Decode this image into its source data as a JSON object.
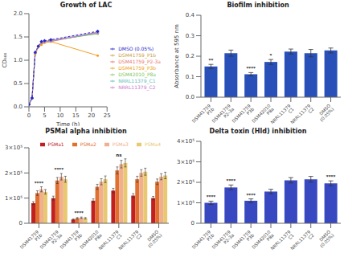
{
  "chart_data": [
    {
      "type": "line",
      "title": "Growth of LAC",
      "x_label": "Time (h)",
      "y_label": "CD₆₀₀",
      "x": [
        0,
        1,
        2,
        3,
        4,
        5,
        7,
        22
      ],
      "series": [
        {
          "name": "DSM41759_P1b",
          "color": "#c8a040",
          "values": [
            0.05,
            0.18,
            1.15,
            1.3,
            1.38,
            1.4,
            1.42,
            1.57
          ],
          "marker": "circle",
          "line_style": "solid"
        },
        {
          "name": "DSM41759_P2-3a",
          "color": "#e87870",
          "values": [
            0.05,
            0.18,
            1.15,
            1.28,
            1.35,
            1.38,
            1.4,
            1.6
          ],
          "marker": "circle",
          "line_style": "solid"
        },
        {
          "name": "DSM41759_P3b",
          "color": "#f0a020",
          "values": [
            0.05,
            0.18,
            1.12,
            1.28,
            1.33,
            1.38,
            1.4,
            1.1
          ],
          "marker": "circle",
          "line_style": "solid"
        },
        {
          "name": "DSM42010_P8a",
          "color": "#80c860",
          "values": [
            0.05,
            0.18,
            1.15,
            1.3,
            1.38,
            1.4,
            1.42,
            1.58
          ],
          "marker": "circle",
          "line_style": "solid"
        },
        {
          "name": "NRRL11379_C1",
          "color": "#60c0b8",
          "values": [
            0.05,
            0.18,
            1.15,
            1.3,
            1.38,
            1.4,
            1.42,
            1.58
          ],
          "marker": "circle",
          "line_style": "solid"
        },
        {
          "name": "NRRL11379_C2",
          "color": "#c878d0",
          "values": [
            0.05,
            0.18,
            1.15,
            1.3,
            1.38,
            1.4,
            1.42,
            1.6
          ],
          "marker": "circle",
          "line_style": "solid"
        },
        {
          "name": "DMSO (0.05%)",
          "color": "#2828cc",
          "values": [
            0.05,
            0.19,
            1.17,
            1.3,
            1.4,
            1.42,
            1.44,
            1.62
          ],
          "marker": "diamond",
          "line_style": "dashed"
        }
      ],
      "xlim": [
        0,
        25
      ],
      "xticks": [
        0,
        5,
        10,
        15,
        20,
        25
      ],
      "ylim": [
        0,
        2
      ],
      "yticks": [
        {
          "value": 0,
          "label": "0.0"
        },
        0.5,
        {
          "value": 1,
          "label": "1.0"
        },
        1.5,
        {
          "value": 2,
          "label": "2.0"
        }
      ],
      "grid": false,
      "legend": "right"
    },
    {
      "type": "bar",
      "title": "Biofilm inhibition",
      "y_label": "Absorbance at 595 nm",
      "categories": [
        "DSM41759\nP1b",
        "DSM41759\nP2-3a",
        "DSM41759\nP3b",
        "DSM42010\nP8a",
        "NRRL11379\nC1",
        "NRRL11379\nC2",
        "DMSO\n(0.05%)"
      ],
      "values": [
        0.15,
        0.215,
        0.112,
        0.172,
        0.223,
        0.215,
        0.228
      ],
      "errors": [
        0.01,
        0.015,
        0.008,
        0.012,
        0.012,
        0.018,
        0.012
      ],
      "color": "#2850b8",
      "annotations": [
        "**",
        null,
        "****",
        "*",
        null,
        null,
        null
      ],
      "ylim": [
        0,
        0.4
      ],
      "yticks": [
        {
          "value": 0,
          "label": "0.0"
        },
        0.1,
        0.2,
        0.3,
        0.4
      ],
      "grid": false
    },
    {
      "type": "bar",
      "title": "PSMal alpha inhibition",
      "categories": [
        "DSM41759\nP1b",
        "DSM41759\nP2-3a",
        "DSM41759\nP3b",
        "DSM42010\nP8a",
        "NRRL11379\nC1",
        "NRRL11379\nC2",
        "DMSO\n(0.05%)"
      ],
      "series": [
        {
          "name": "PSMa1",
          "color": "#c02020",
          "values": [
            80000,
            100000,
            15000,
            90000,
            130000,
            110000,
            100000
          ],
          "errors": [
            6000,
            8000,
            2000,
            7000,
            9000,
            8000,
            7000
          ]
        },
        {
          "name": "PSMa2",
          "color": "#e07030",
          "values": [
            120000,
            170000,
            20000,
            145000,
            210000,
            175000,
            165000
          ],
          "errors": [
            9000,
            12000,
            3000,
            10000,
            14000,
            12000,
            11000
          ]
        },
        {
          "name": "PSMa3",
          "color": "#f0b090",
          "values": [
            135000,
            185000,
            22000,
            165000,
            235000,
            200000,
            185000
          ],
          "errors": [
            10000,
            13000,
            3000,
            12000,
            15000,
            13000,
            12000
          ]
        },
        {
          "name": "PSMa4",
          "color": "#e8c870",
          "values": [
            125000,
            175000,
            20000,
            175000,
            240000,
            205000,
            190000
          ],
          "errors": [
            9000,
            12000,
            3000,
            13000,
            16000,
            14000,
            13000
          ]
        }
      ],
      "annotations": [
        "****",
        "****",
        "****",
        null,
        "ns",
        null,
        null
      ],
      "ylim": [
        0,
        300000
      ],
      "yticks": [
        0,
        {
          "value": 100000,
          "label": "1×10⁵"
        },
        {
          "value": 200000,
          "label": "2×10⁵"
        },
        {
          "value": 300000,
          "label": "3×10⁵"
        }
      ],
      "grid": false,
      "legend": "top"
    },
    {
      "type": "bar",
      "title": "Delta toxin (Hld) inhibition",
      "categories": [
        "DSM41759\nP1b",
        "DSM41759\nP2-3a",
        "DSM41759\nP3b",
        "DSM42010\nP8a",
        "NRRL11379\nC1",
        "NRRL11379\nC2",
        "DMSO\n(0.05%)"
      ],
      "values": [
        100000,
        175000,
        110000,
        155000,
        210000,
        215000,
        195000
      ],
      "errors": [
        8000,
        12000,
        9000,
        11000,
        13000,
        14000,
        12000
      ],
      "color": "#3848c0",
      "annotations": [
        "****",
        "****",
        "****",
        null,
        null,
        null,
        "****"
      ],
      "ylim": [
        0,
        400000
      ],
      "yticks": [
        0,
        {
          "value": 100000,
          "label": "1×10⁵"
        },
        {
          "value": 200000,
          "label": "2×10⁵"
        },
        {
          "value": 300000,
          "label": "3×10⁵"
        },
        {
          "value": 400000,
          "label": "4×10⁵"
        }
      ],
      "grid": false
    }
  ]
}
